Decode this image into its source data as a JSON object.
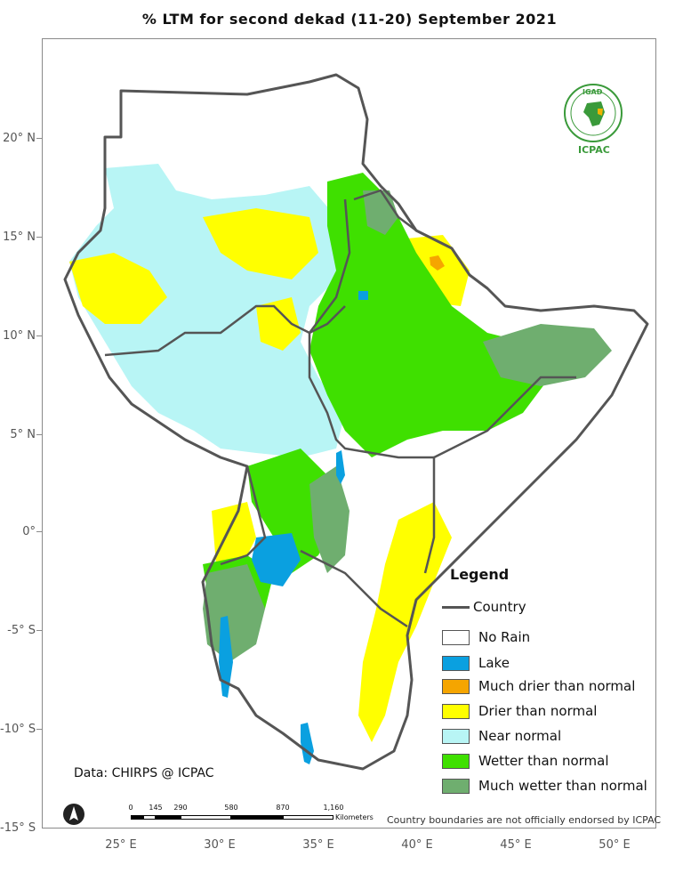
{
  "title": "% LTM for  second dekad (11-20) September  2021",
  "lat_labels": [
    "20° N",
    "15° N",
    "10° N",
    "5° N",
    "0°",
    "-5° S",
    "-10° S",
    "-15° S"
  ],
  "lon_labels": [
    "25° E",
    "30° E",
    "35° E",
    "40° E",
    "45° E",
    "50° E"
  ],
  "legend": {
    "title": "Legend",
    "country_label": "Country",
    "items": [
      {
        "label": "No Rain",
        "color": "#ffffff"
      },
      {
        "label": "Lake",
        "color": "#0aa0e0"
      },
      {
        "label": "Much drier than normal",
        "color": "#f5a500"
      },
      {
        "label": "Drier than normal",
        "color": "#ffff00"
      },
      {
        "label": "Near normal",
        "color": "#b8f5f5"
      },
      {
        "label": "Wetter than normal",
        "color": "#3fe000"
      },
      {
        "label": "Much wetter than normal",
        "color": "#6fae6f"
      }
    ]
  },
  "credit": "Data: CHIRPS @ ICPAC",
  "disclaimer": "Country boundaries are not officially endorsed by ICPAC",
  "scale": {
    "labels": [
      "0",
      "145",
      "290",
      "580",
      "870",
      "1,160"
    ],
    "unit": "Kilometers"
  },
  "logo": {
    "top_text": "IGAD",
    "bottom_text": "ICPAC",
    "color": "#3a9a3a"
  },
  "colors": {
    "border": "#555555",
    "frame": "#8a8a8a"
  }
}
